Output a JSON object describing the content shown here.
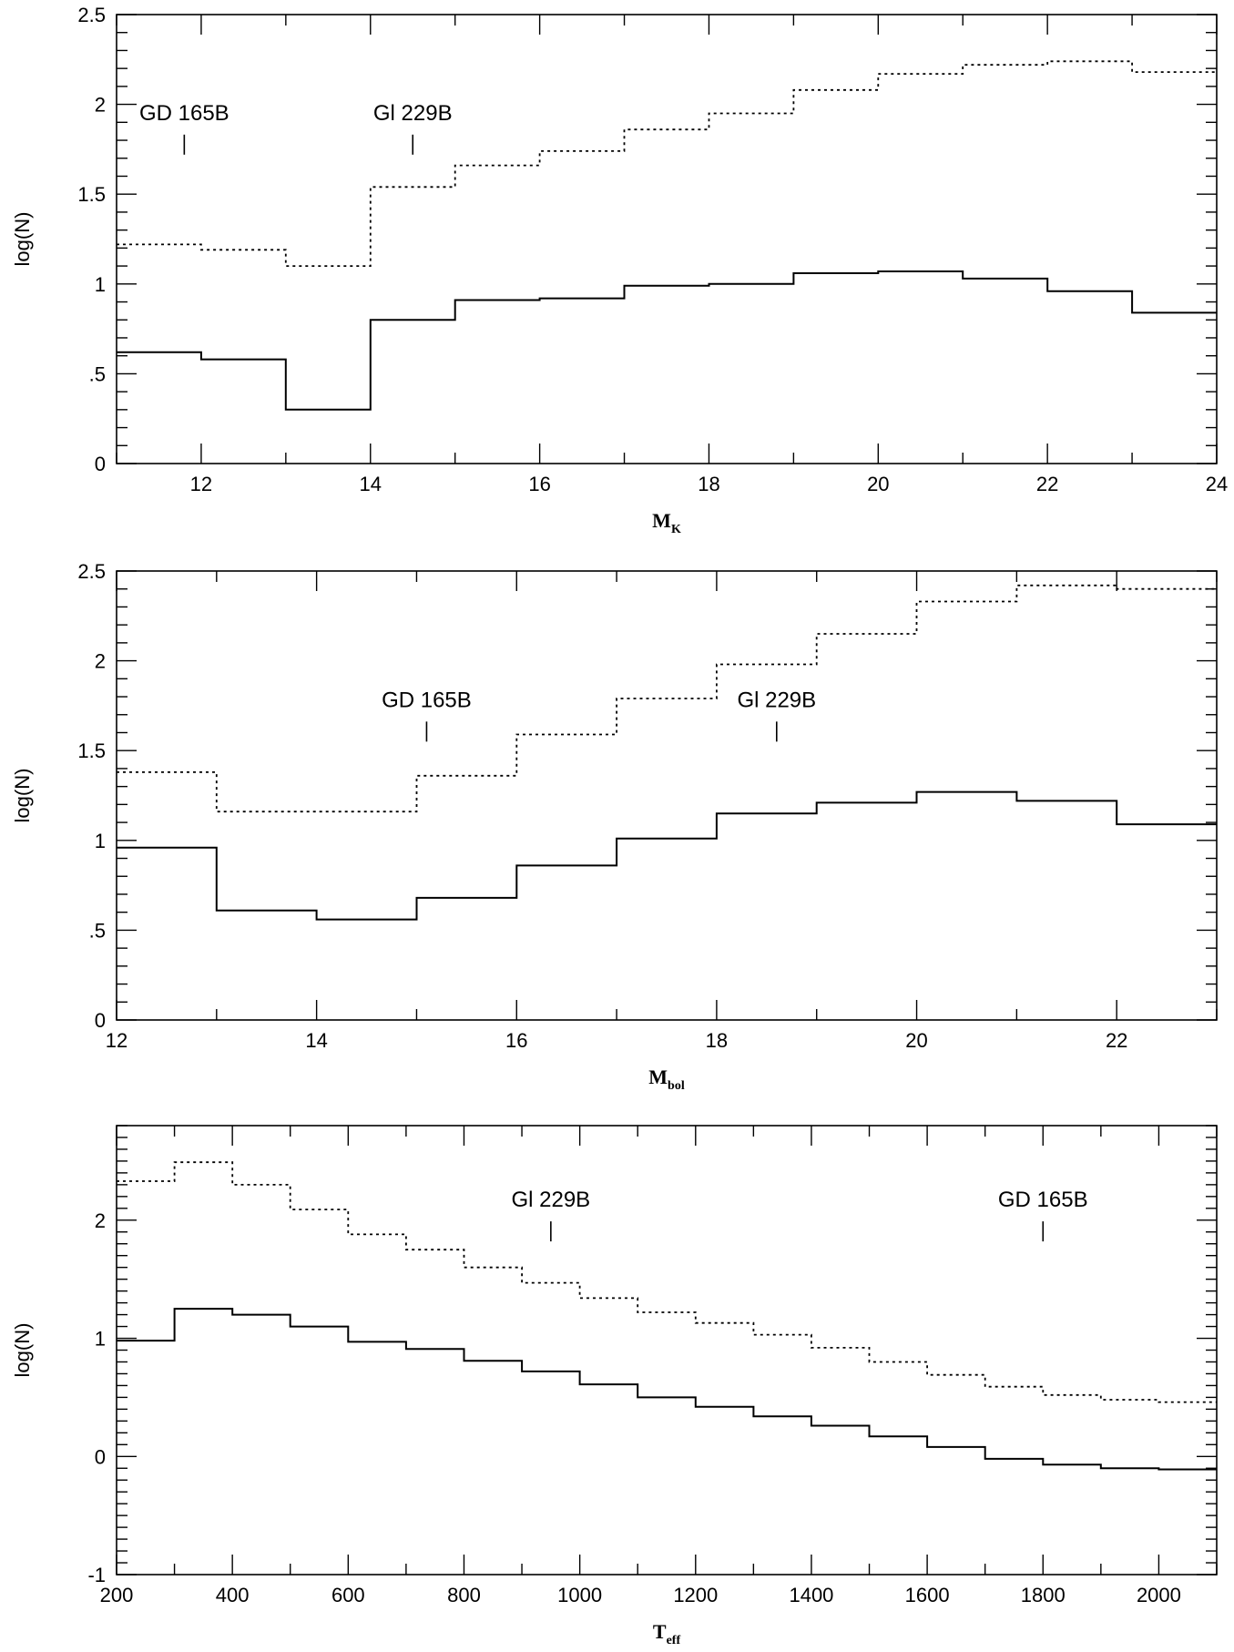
{
  "chart_data": [
    {
      "type": "line",
      "step": true,
      "xlabel": "M",
      "xlabel_sub": "K",
      "ylabel": "log(N)",
      "xlim": [
        11,
        24
      ],
      "ylim": [
        0,
        2.5
      ],
      "xticks": [
        12,
        14,
        16,
        18,
        20,
        22,
        24
      ],
      "yticks": [
        0,
        0.5,
        1,
        1.5,
        2,
        2.5
      ],
      "ytick_labels": [
        "0",
        ".5",
        "1",
        "1.5",
        "2",
        "2.5"
      ],
      "grid": false,
      "series": [
        {
          "style": "solid",
          "edges": [
            11,
            12,
            13,
            14,
            15,
            16,
            17,
            18,
            19,
            20,
            21,
            22,
            23,
            24
          ],
          "values": [
            0.62,
            0.58,
            0.3,
            0.8,
            0.91,
            0.92,
            0.99,
            1.0,
            1.06,
            1.07,
            1.03,
            0.96,
            0.84
          ]
        },
        {
          "style": "dotted",
          "edges": [
            11,
            12,
            13,
            14,
            15,
            16,
            17,
            18,
            19,
            20,
            21,
            22,
            23,
            24
          ],
          "values": [
            1.22,
            1.19,
            1.1,
            1.54,
            1.66,
            1.74,
            1.86,
            1.95,
            2.08,
            2.17,
            2.22,
            2.24,
            2.18
          ]
        }
      ],
      "annotations": [
        {
          "label": "GD 165B",
          "x": 11.8,
          "y": 1.72
        },
        {
          "label": "Gl 229B",
          "x": 14.5,
          "y": 1.72
        }
      ]
    },
    {
      "type": "line",
      "step": true,
      "xlabel": "M",
      "xlabel_sub": "bol",
      "ylabel": "log(N)",
      "xlim": [
        12,
        23
      ],
      "ylim": [
        0,
        2.5
      ],
      "xticks": [
        12,
        14,
        16,
        18,
        20,
        22
      ],
      "yticks": [
        0,
        0.5,
        1,
        1.5,
        2,
        2.5
      ],
      "ytick_labels": [
        "0",
        ".5",
        "1",
        "1.5",
        "2",
        "2.5"
      ],
      "grid": false,
      "series": [
        {
          "style": "solid",
          "edges": [
            12,
            13,
            14,
            15,
            16,
            17,
            18,
            19,
            20,
            21,
            22,
            23
          ],
          "values": [
            0.96,
            0.61,
            0.56,
            0.68,
            0.86,
            1.01,
            1.15,
            1.21,
            1.27,
            1.22,
            1.09
          ]
        },
        {
          "style": "dotted",
          "edges": [
            12,
            13,
            14,
            15,
            16,
            17,
            18,
            19,
            20,
            21,
            22,
            23
          ],
          "values": [
            1.38,
            1.16,
            1.16,
            1.36,
            1.59,
            1.79,
            1.98,
            2.15,
            2.33,
            2.42,
            2.4
          ]
        }
      ],
      "annotations": [
        {
          "label": "GD 165B",
          "x": 15.1,
          "y": 1.55
        },
        {
          "label": "Gl 229B",
          "x": 18.6,
          "y": 1.55
        }
      ]
    },
    {
      "type": "line",
      "step": true,
      "xlabel": "T",
      "xlabel_sub": "eff",
      "ylabel": "log(N)",
      "xlim": [
        200,
        2100
      ],
      "ylim": [
        -1,
        2.8
      ],
      "xticks": [
        200,
        400,
        600,
        800,
        1000,
        1200,
        1400,
        1600,
        1800,
        2000
      ],
      "yticks": [
        -1,
        0,
        1,
        2
      ],
      "ytick_labels": [
        "-1",
        "0",
        "1",
        "2"
      ],
      "grid": false,
      "series": [
        {
          "style": "solid",
          "edges": [
            200,
            300,
            400,
            500,
            600,
            700,
            800,
            900,
            1000,
            1100,
            1200,
            1300,
            1400,
            1500,
            1600,
            1700,
            1800,
            1900,
            2000,
            2100
          ],
          "values": [
            0.98,
            1.25,
            1.2,
            1.1,
            0.97,
            0.91,
            0.81,
            0.72,
            0.61,
            0.5,
            0.42,
            0.34,
            0.26,
            0.17,
            0.08,
            -0.02,
            -0.07,
            -0.1,
            -0.11
          ]
        },
        {
          "style": "dotted",
          "edges": [
            200,
            300,
            400,
            500,
            600,
            700,
            800,
            900,
            1000,
            1100,
            1200,
            1300,
            1400,
            1500,
            1600,
            1700,
            1800,
            1900,
            2000,
            2100
          ],
          "values": [
            2.33,
            2.49,
            2.3,
            2.09,
            1.88,
            1.75,
            1.6,
            1.47,
            1.34,
            1.22,
            1.13,
            1.03,
            0.92,
            0.8,
            0.69,
            0.59,
            0.52,
            0.48,
            0.46
          ]
        }
      ],
      "annotations": [
        {
          "label": "Gl 229B",
          "x": 950,
          "y": 1.82
        },
        {
          "label": "GD 165B",
          "x": 1800,
          "y": 1.82
        }
      ]
    }
  ]
}
